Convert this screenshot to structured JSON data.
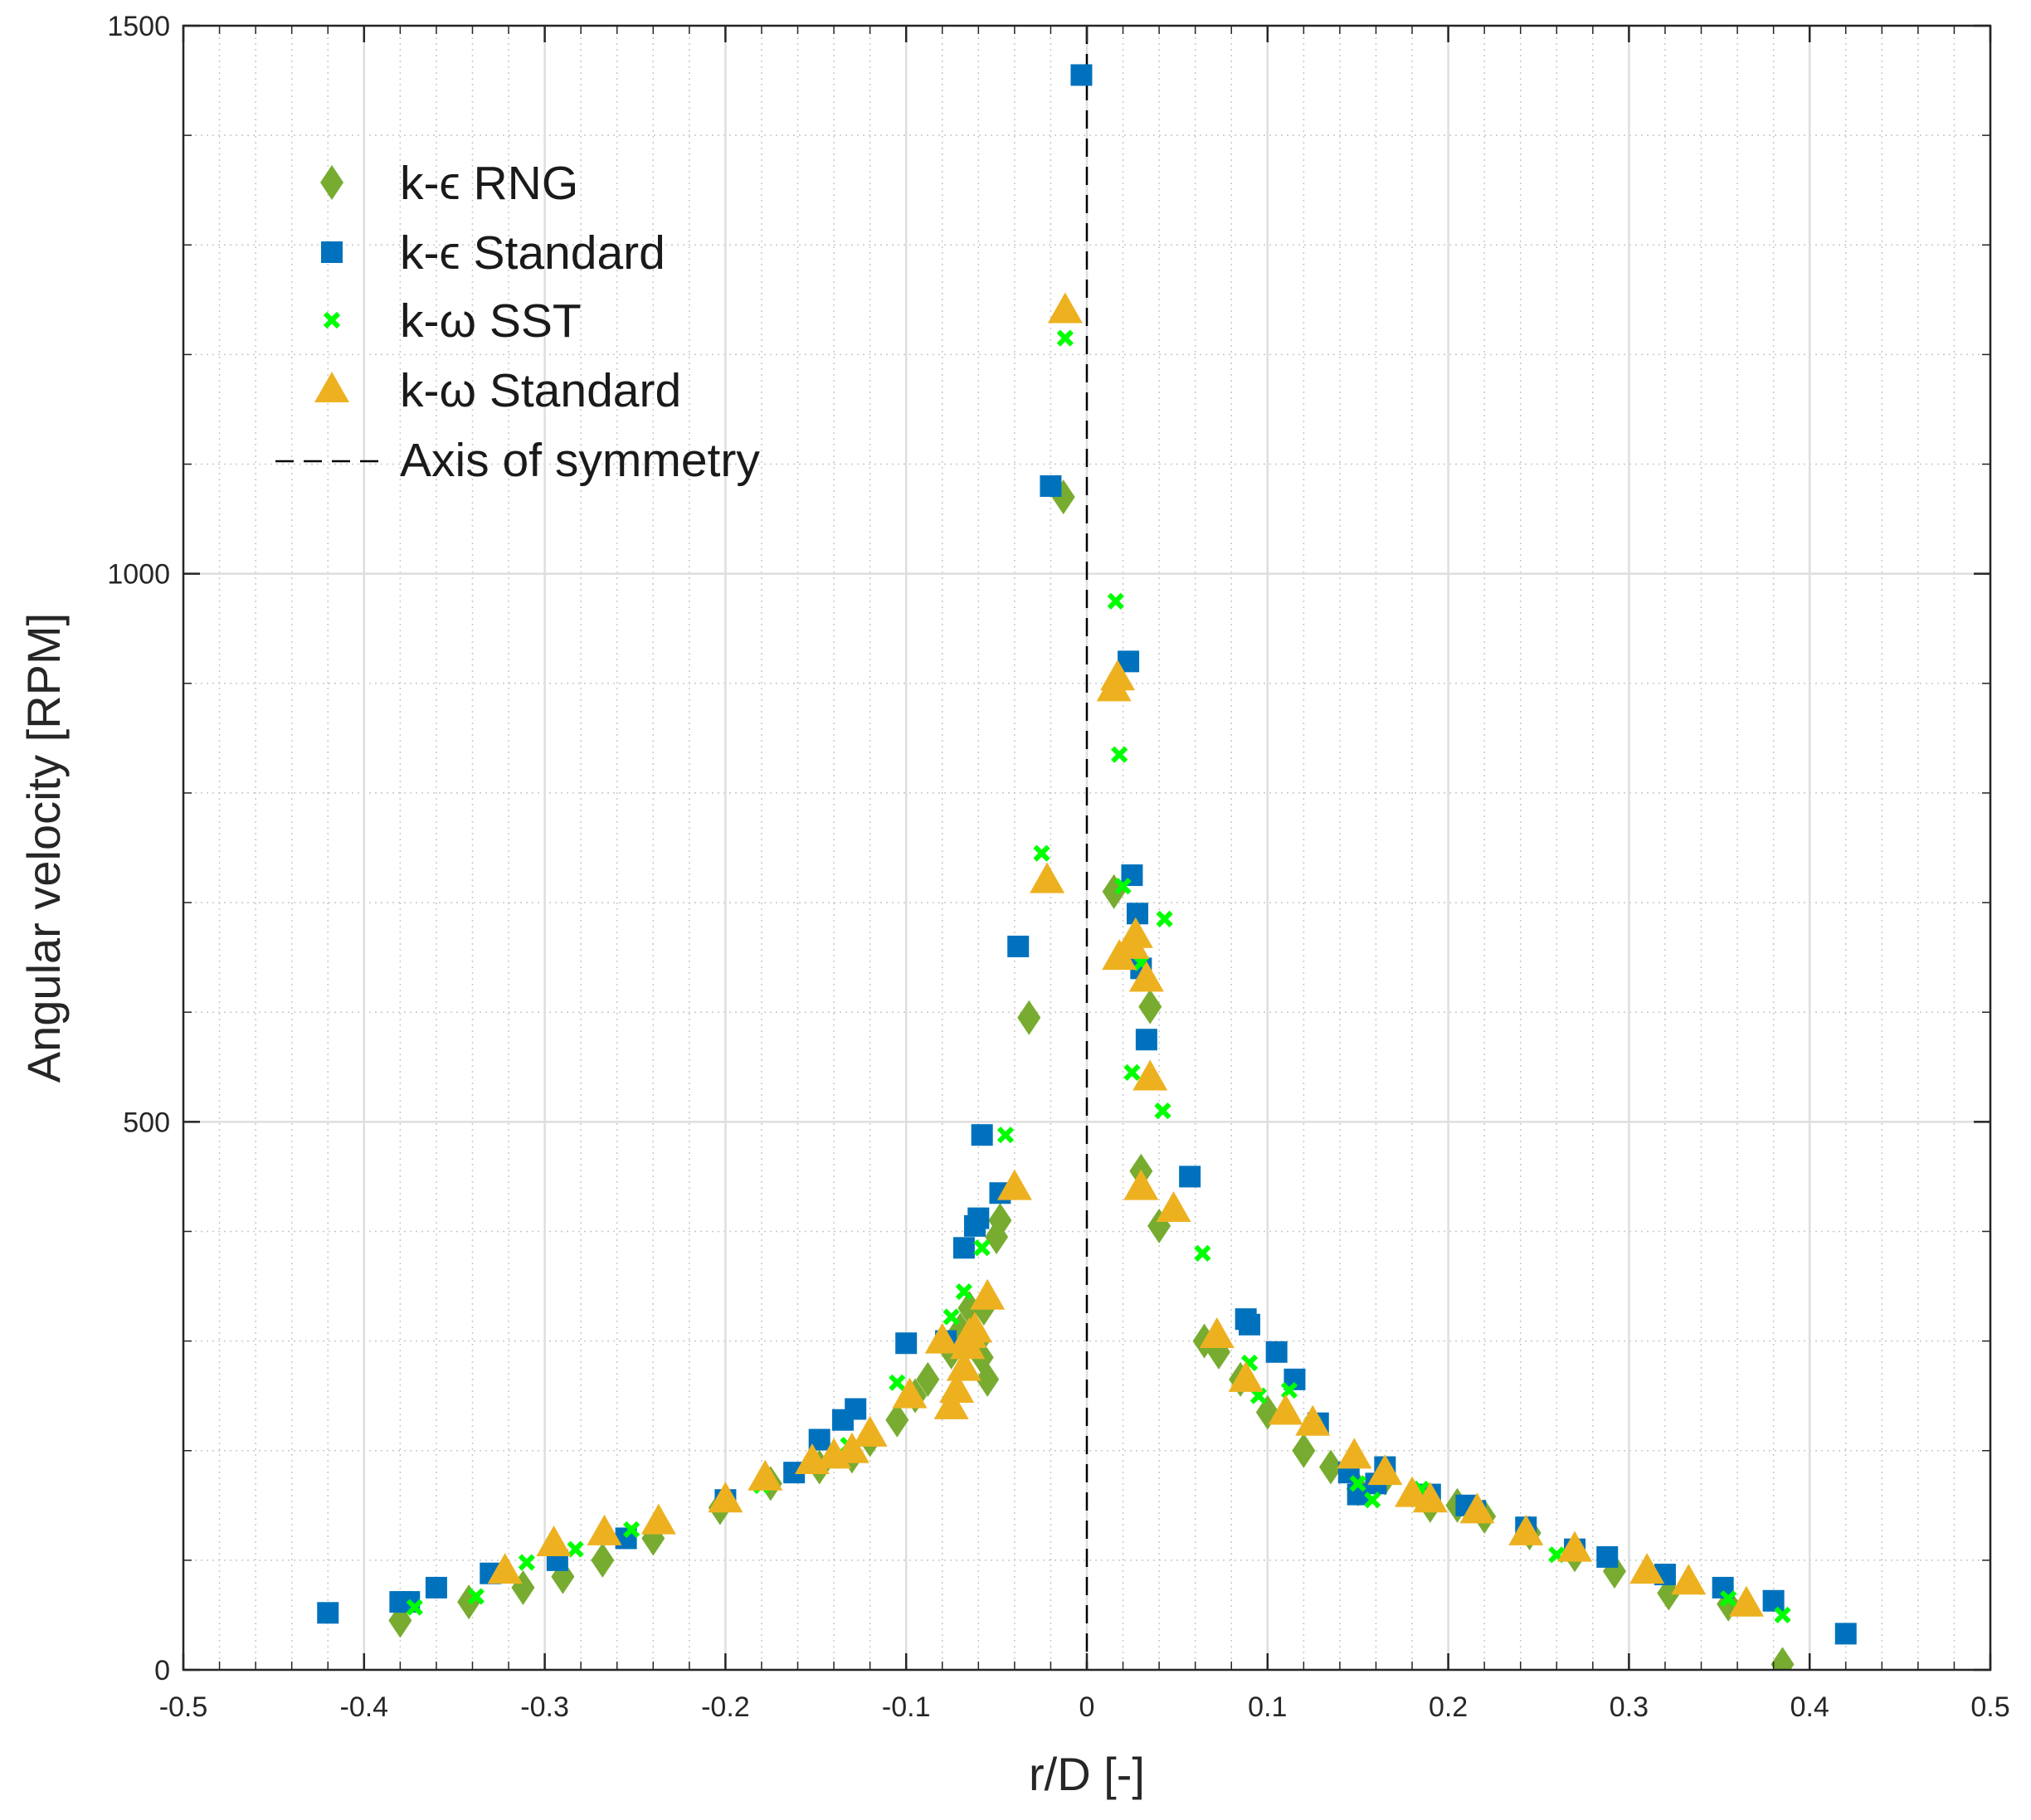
{
  "chart_data": {
    "type": "scatter",
    "title": "",
    "xlabel": "r/D [-]",
    "ylabel": "Angular velocity [RPM]",
    "xlim": [
      -0.5,
      0.5
    ],
    "ylim": [
      0,
      1500
    ],
    "xticks": [
      -0.5,
      -0.4,
      -0.3,
      -0.2,
      -0.1,
      0,
      0.1,
      0.2,
      0.3,
      0.4,
      0.5
    ],
    "xtick_labels": [
      "-0.5",
      "-0.4",
      "-0.3",
      "-0.2",
      "-0.1",
      "0",
      "0.1",
      "0.2",
      "0.3",
      "0.4",
      "0.5"
    ],
    "yticks": [
      0,
      500,
      1000,
      1500
    ],
    "ytick_labels": [
      "0",
      "500",
      "1000",
      "1500"
    ],
    "grid": true,
    "minor_grid": true,
    "legend_position": "top-left",
    "axis_of_symmetry": {
      "label": "Axis of symmetry",
      "x": 0,
      "color": "#000000",
      "style": "dashed"
    },
    "series": [
      {
        "name": "k-ϵ RNG",
        "marker": "diamond",
        "color": "#77AC30",
        "points": [
          [
            -0.38,
            45
          ],
          [
            -0.342,
            62
          ],
          [
            -0.312,
            75
          ],
          [
            -0.29,
            85
          ],
          [
            -0.268,
            100
          ],
          [
            -0.24,
            120
          ],
          [
            -0.203,
            148
          ],
          [
            -0.175,
            170
          ],
          [
            -0.148,
            185
          ],
          [
            -0.13,
            195
          ],
          [
            -0.12,
            210
          ],
          [
            -0.105,
            228
          ],
          [
            -0.095,
            250
          ],
          [
            -0.088,
            265
          ],
          [
            -0.075,
            290
          ],
          [
            -0.07,
            310
          ],
          [
            -0.065,
            330
          ],
          [
            -0.06,
            300
          ],
          [
            -0.058,
            285
          ],
          [
            -0.055,
            265
          ],
          [
            -0.057,
            330
          ],
          [
            -0.05,
            395
          ],
          [
            -0.048,
            410
          ],
          [
            -0.032,
            595
          ],
          [
            -0.013,
            1070
          ],
          [
            0.015,
            710
          ],
          [
            0.03,
            455
          ],
          [
            0.035,
            605
          ],
          [
            0.04,
            405
          ],
          [
            0.065,
            300
          ],
          [
            0.073,
            290
          ],
          [
            0.085,
            265
          ],
          [
            0.1,
            235
          ],
          [
            0.12,
            200
          ],
          [
            0.135,
            185
          ],
          [
            0.15,
            165
          ],
          [
            0.165,
            175
          ],
          [
            0.19,
            150
          ],
          [
            0.205,
            150
          ],
          [
            0.22,
            140
          ],
          [
            0.245,
            125
          ],
          [
            0.27,
            105
          ],
          [
            0.292,
            90
          ],
          [
            0.322,
            70
          ],
          [
            0.355,
            60
          ],
          [
            0.385,
            5
          ]
        ]
      },
      {
        "name": "k-ϵ Standard",
        "marker": "square",
        "color": "#0072BD",
        "points": [
          [
            -0.42,
            52
          ],
          [
            -0.38,
            62
          ],
          [
            -0.375,
            62
          ],
          [
            -0.36,
            75
          ],
          [
            -0.33,
            88
          ],
          [
            -0.293,
            100
          ],
          [
            -0.255,
            120
          ],
          [
            -0.2,
            155
          ],
          [
            -0.162,
            180
          ],
          [
            -0.148,
            210
          ],
          [
            -0.135,
            228
          ],
          [
            -0.128,
            238
          ],
          [
            -0.1,
            298
          ],
          [
            -0.078,
            300
          ],
          [
            -0.068,
            385
          ],
          [
            -0.062,
            405
          ],
          [
            -0.06,
            412
          ],
          [
            -0.058,
            488
          ],
          [
            -0.048,
            435
          ],
          [
            -0.038,
            660
          ],
          [
            -0.02,
            1080
          ],
          [
            -0.003,
            1455
          ],
          [
            0.023,
            920
          ],
          [
            0.025,
            725
          ],
          [
            0.028,
            690
          ],
          [
            0.03,
            640
          ],
          [
            0.033,
            575
          ],
          [
            0.057,
            450
          ],
          [
            0.088,
            320
          ],
          [
            0.09,
            315
          ],
          [
            0.105,
            290
          ],
          [
            0.115,
            265
          ],
          [
            0.128,
            225
          ],
          [
            0.145,
            180
          ],
          [
            0.15,
            160
          ],
          [
            0.16,
            170
          ],
          [
            0.165,
            185
          ],
          [
            0.19,
            160
          ],
          [
            0.21,
            150
          ],
          [
            0.215,
            145
          ],
          [
            0.243,
            130
          ],
          [
            0.27,
            110
          ],
          [
            0.288,
            103
          ],
          [
            0.32,
            87
          ],
          [
            0.352,
            75
          ],
          [
            0.38,
            63
          ],
          [
            0.42,
            33
          ]
        ]
      },
      {
        "name": "k-ω SST",
        "marker": "x",
        "color": "#00FF00",
        "points": [
          [
            -0.372,
            57
          ],
          [
            -0.338,
            67
          ],
          [
            -0.31,
            98
          ],
          [
            -0.283,
            110
          ],
          [
            -0.252,
            128
          ],
          [
            -0.18,
            168
          ],
          [
            -0.132,
            205
          ],
          [
            -0.105,
            262
          ],
          [
            -0.075,
            322
          ],
          [
            -0.068,
            345
          ],
          [
            -0.058,
            385
          ],
          [
            -0.045,
            488
          ],
          [
            -0.025,
            745
          ],
          [
            -0.012,
            1215
          ],
          [
            0.016,
            975
          ],
          [
            0.018,
            835
          ],
          [
            0.02,
            715
          ],
          [
            0.025,
            545
          ],
          [
            0.03,
            645
          ],
          [
            0.042,
            510
          ],
          [
            0.043,
            685
          ],
          [
            0.064,
            380
          ],
          [
            0.09,
            280
          ],
          [
            0.095,
            250
          ],
          [
            0.112,
            255
          ],
          [
            0.125,
            225
          ],
          [
            0.15,
            170
          ],
          [
            0.158,
            155
          ],
          [
            0.185,
            165
          ],
          [
            0.26,
            105
          ],
          [
            0.355,
            65
          ],
          [
            0.385,
            50
          ]
        ]
      },
      {
        "name": "k-ω Standard",
        "marker": "triangle",
        "color": "#EDB120",
        "points": [
          [
            -0.322,
            90
          ],
          [
            -0.295,
            115
          ],
          [
            -0.267,
            125
          ],
          [
            -0.237,
            135
          ],
          [
            -0.2,
            155
          ],
          [
            -0.178,
            175
          ],
          [
            -0.152,
            190
          ],
          [
            -0.14,
            195
          ],
          [
            -0.13,
            200
          ],
          [
            -0.12,
            215
          ],
          [
            -0.098,
            250
          ],
          [
            -0.08,
            300
          ],
          [
            -0.075,
            240
          ],
          [
            -0.072,
            255
          ],
          [
            -0.068,
            275
          ],
          [
            -0.066,
            295
          ],
          [
            -0.065,
            305
          ],
          [
            -0.062,
            310
          ],
          [
            -0.055,
            340
          ],
          [
            -0.04,
            440
          ],
          [
            -0.022,
            720
          ],
          [
            -0.012,
            1240
          ],
          [
            0.015,
            895
          ],
          [
            0.017,
            905
          ],
          [
            0.018,
            650
          ],
          [
            0.025,
            660
          ],
          [
            0.027,
            670
          ],
          [
            0.033,
            630
          ],
          [
            0.035,
            540
          ],
          [
            0.03,
            440
          ],
          [
            0.048,
            420
          ],
          [
            0.072,
            305
          ],
          [
            0.088,
            265
          ],
          [
            0.11,
            235
          ],
          [
            0.125,
            225
          ],
          [
            0.148,
            195
          ],
          [
            0.165,
            180
          ],
          [
            0.18,
            160
          ],
          [
            0.19,
            155
          ],
          [
            0.216,
            145
          ],
          [
            0.243,
            125
          ],
          [
            0.27,
            110
          ],
          [
            0.31,
            90
          ],
          [
            0.333,
            80
          ],
          [
            0.365,
            60
          ]
        ]
      }
    ]
  }
}
